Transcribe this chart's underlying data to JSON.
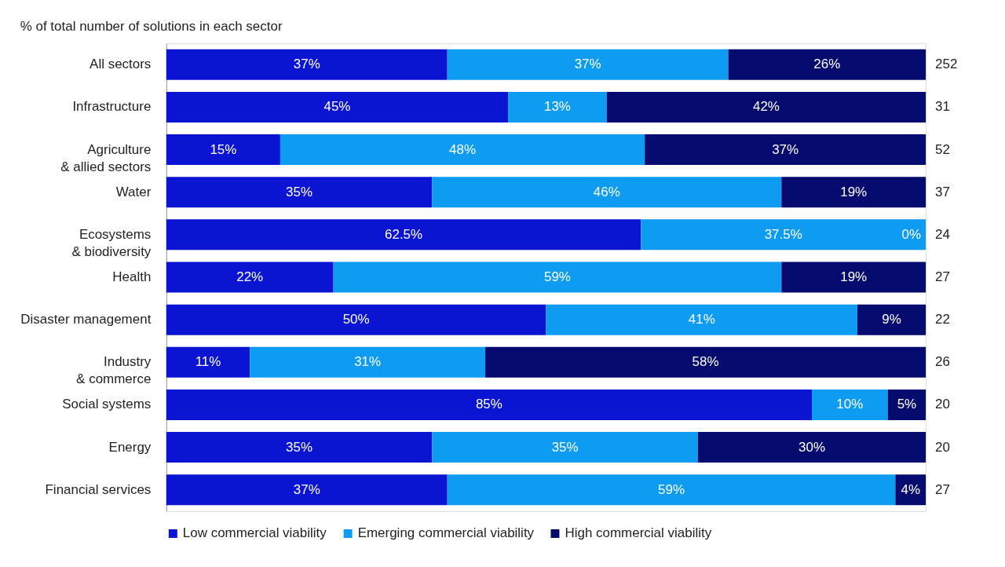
{
  "chart_data": {
    "type": "bar",
    "orientation": "horizontal",
    "stacked": true,
    "ylabel": "% of total number of solutions in each sector",
    "categories": [
      "All sectors",
      "Infrastructure",
      "Agriculture\n& allied sectors",
      "Water",
      "Ecosystems\n& biodiversity",
      "Health",
      "Disaster management",
      "Industry\n& commerce",
      "Social systems",
      "Energy",
      "Financial services"
    ],
    "series": [
      {
        "name": "Low commercial viability",
        "color": "#0a14d2",
        "values": [
          37,
          45,
          15,
          35,
          62.5,
          22,
          50,
          11,
          85,
          35,
          37
        ],
        "value_labels": [
          "37%",
          "45%",
          "15%",
          "35%",
          "62.5%",
          "22%",
          "50%",
          "11%",
          "85%",
          "35%",
          "37%"
        ]
      },
      {
        "name": "Emerging commercial viability",
        "color": "#0d9cf2",
        "values": [
          37,
          13,
          48,
          46,
          37.5,
          59,
          41,
          31,
          10,
          35,
          59
        ],
        "value_labels": [
          "37%",
          "13%",
          "48%",
          "46%",
          "37.5%",
          "59%",
          "41%",
          "31%",
          "10%",
          "35%",
          "59%"
        ]
      },
      {
        "name": "High commercial viability",
        "color": "#050a6e",
        "values": [
          26,
          42,
          37,
          19,
          0,
          19,
          9,
          58,
          5,
          30,
          4
        ],
        "value_labels": [
          "26%",
          "42%",
          "37%",
          "19%",
          "0%",
          "19%",
          "9%",
          "58%",
          "5%",
          "30%",
          "4%"
        ]
      }
    ],
    "annotations": [
      "252",
      "31",
      "52",
      "37",
      "24",
      "27",
      "22",
      "26",
      "20",
      "20",
      "27"
    ],
    "xlim": [
      0,
      100
    ],
    "tick_labels": "y",
    "legend": "bottom"
  }
}
